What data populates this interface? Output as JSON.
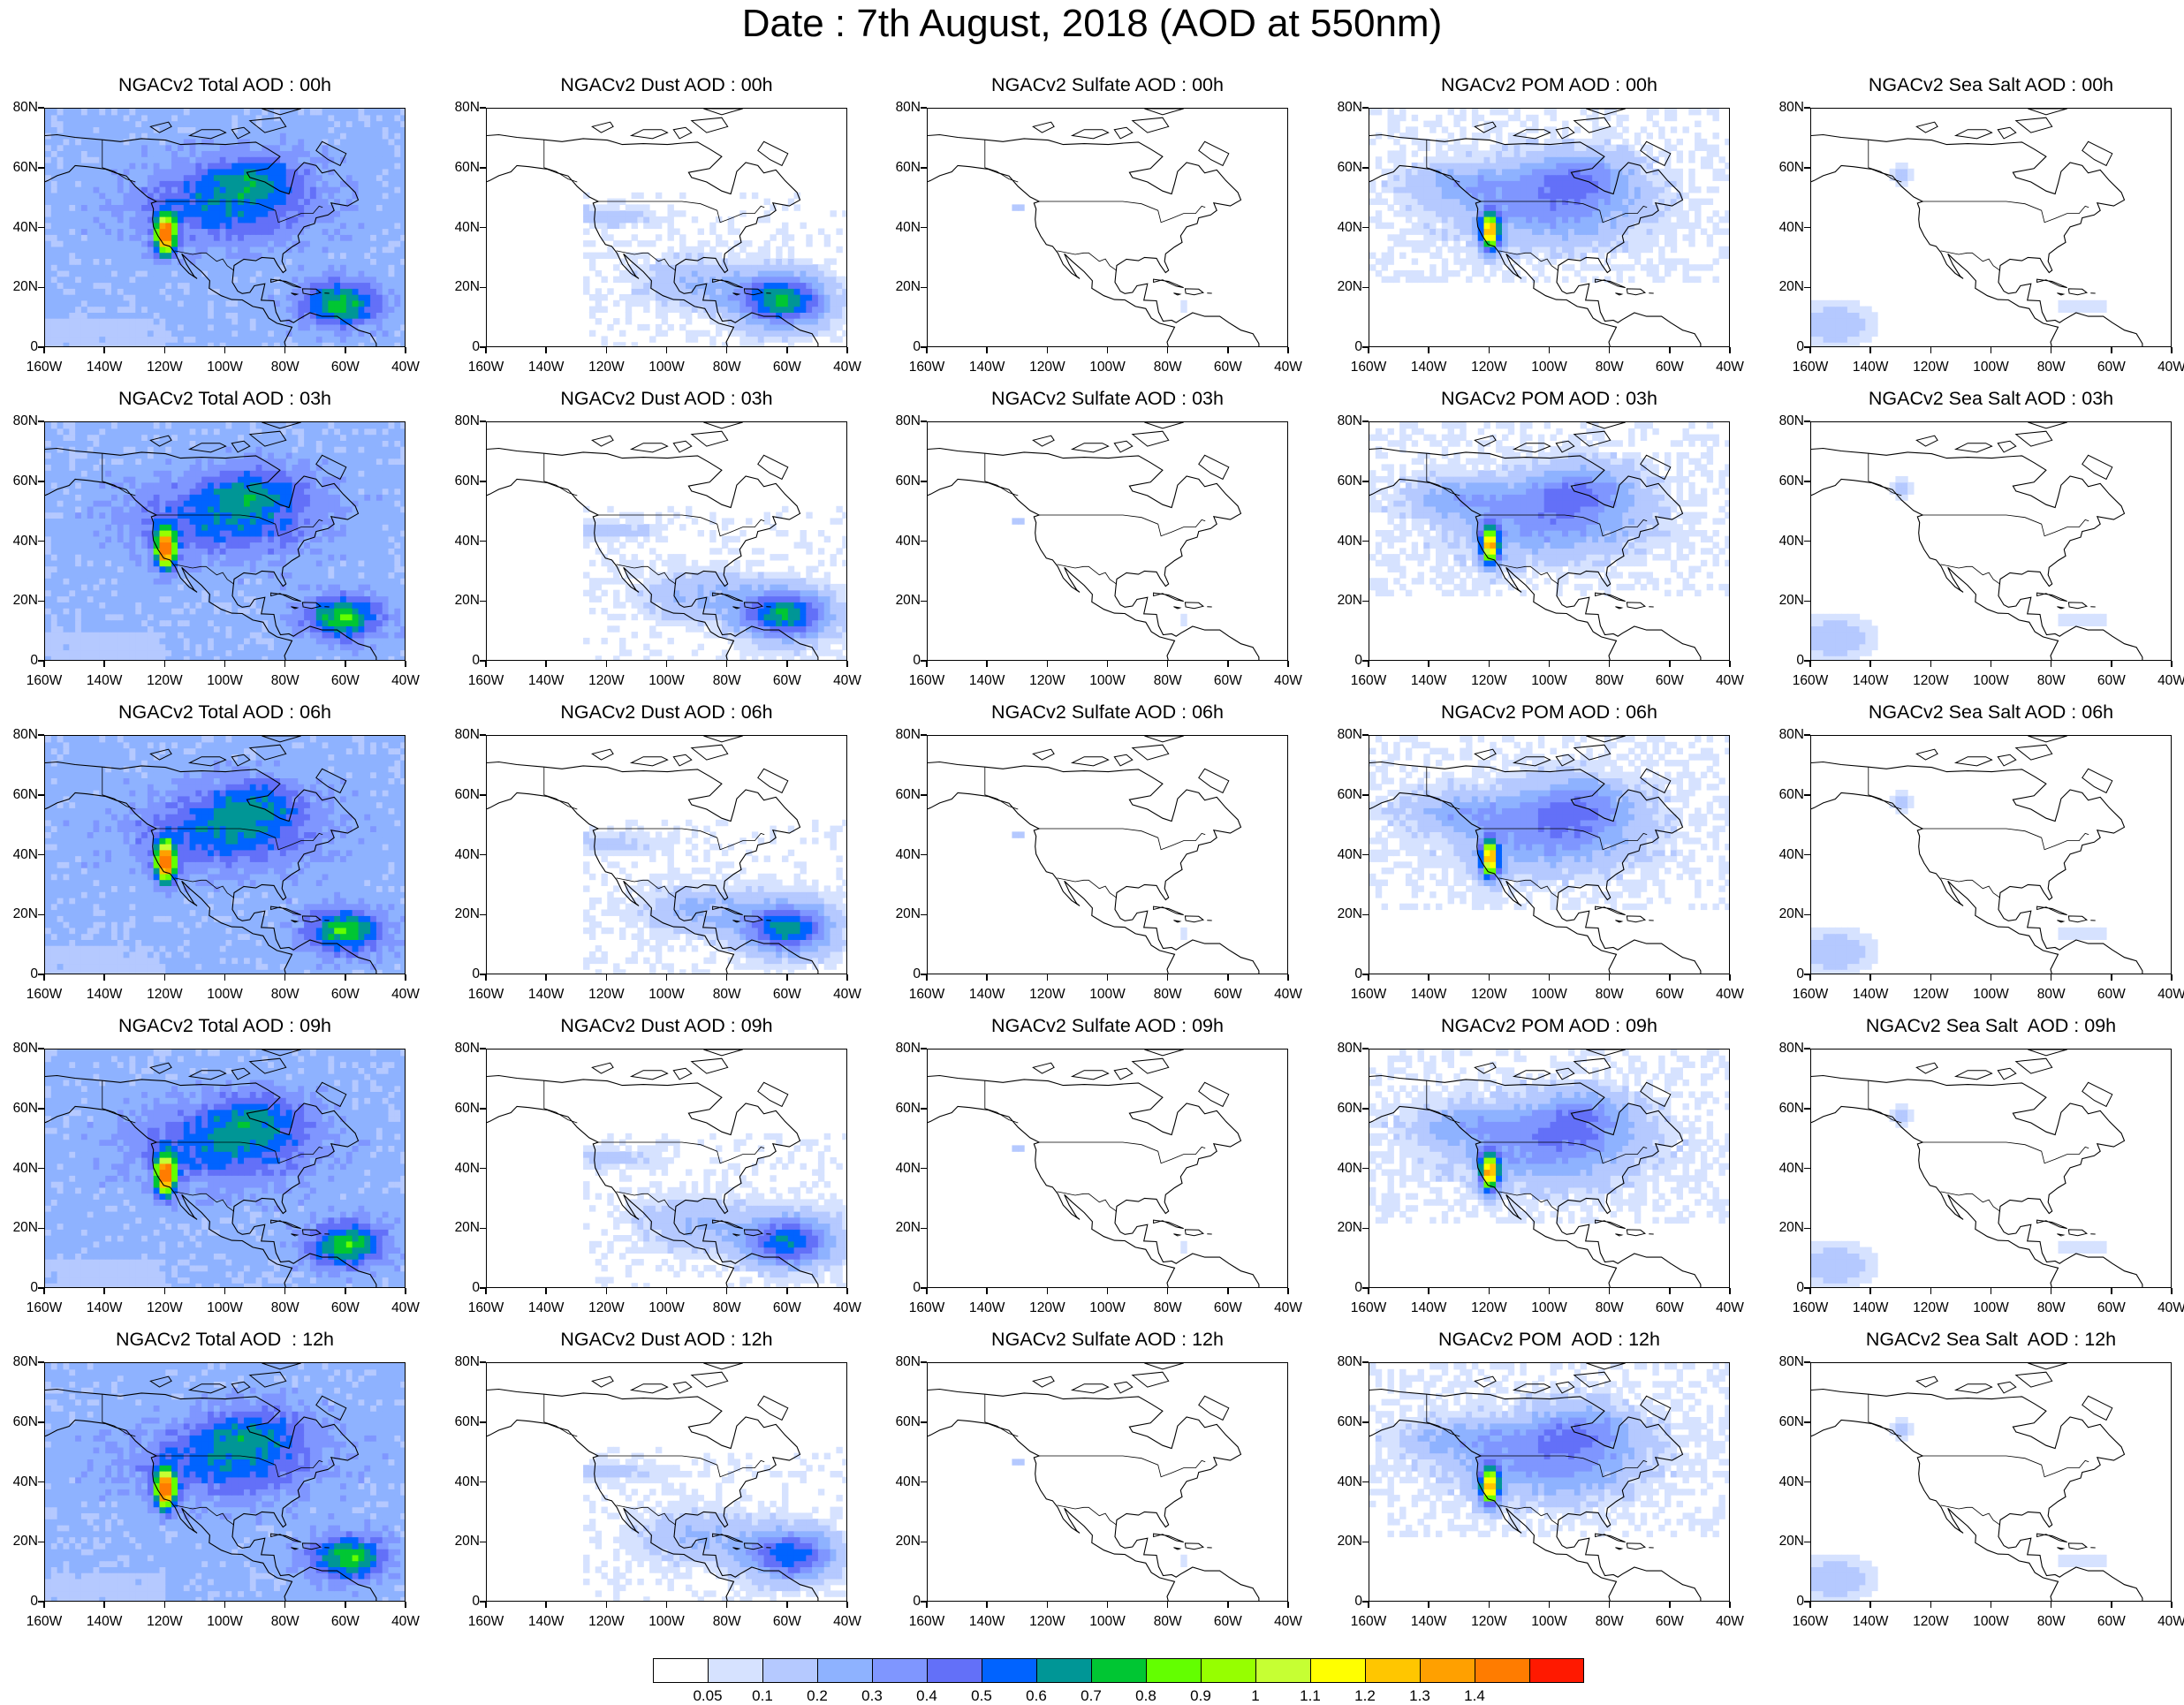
{
  "title": "Date : 7th August, 2018 (AOD at 550nm)",
  "lat_labels": [
    "80N",
    "60N",
    "40N",
    "20N",
    "0"
  ],
  "lon_labels": [
    "160W",
    "140W",
    "120W",
    "100W",
    "80W",
    "60W",
    "40W"
  ],
  "panels": [
    [
      {
        "title": "NGACv2 Total AOD : 00h",
        "species": "total",
        "hour": "00"
      },
      {
        "title": "NGACv2 Dust AOD : 00h",
        "species": "dust",
        "hour": "00"
      },
      {
        "title": "NGACv2 Sulfate AOD : 00h",
        "species": "sulfate",
        "hour": "00"
      },
      {
        "title": "NGACv2 POM AOD : 00h",
        "species": "pom",
        "hour": "00"
      },
      {
        "title": "NGACv2 Sea Salt AOD : 00h",
        "species": "seasalt",
        "hour": "00"
      }
    ],
    [
      {
        "title": "NGACv2 Total AOD : 03h",
        "species": "total",
        "hour": "03"
      },
      {
        "title": "NGACv2 Dust AOD : 03h",
        "species": "dust",
        "hour": "03"
      },
      {
        "title": "NGACv2 Sulfate AOD : 03h",
        "species": "sulfate",
        "hour": "03"
      },
      {
        "title": "NGACv2 POM AOD : 03h",
        "species": "pom",
        "hour": "03"
      },
      {
        "title": "NGACv2 Sea Salt AOD : 03h",
        "species": "seasalt",
        "hour": "03"
      }
    ],
    [
      {
        "title": "NGACv2 Total AOD : 06h",
        "species": "total",
        "hour": "06"
      },
      {
        "title": "NGACv2 Dust AOD : 06h",
        "species": "dust",
        "hour": "06"
      },
      {
        "title": "NGACv2 Sulfate AOD : 06h",
        "species": "sulfate",
        "hour": "06"
      },
      {
        "title": "NGACv2 POM AOD : 06h",
        "species": "pom",
        "hour": "06"
      },
      {
        "title": "NGACv2 Sea Salt AOD : 06h",
        "species": "seasalt",
        "hour": "06"
      }
    ],
    [
      {
        "title": "NGACv2 Total AOD : 09h",
        "species": "total",
        "hour": "09"
      },
      {
        "title": "NGACv2 Dust AOD : 09h",
        "species": "dust",
        "hour": "09"
      },
      {
        "title": "NGACv2 Sulfate AOD : 09h",
        "species": "sulfate",
        "hour": "09"
      },
      {
        "title": "NGACv2 POM AOD : 09h",
        "species": "pom",
        "hour": "09"
      },
      {
        "title": "NGACv2 Sea Salt  AOD : 09h",
        "species": "seasalt",
        "hour": "09"
      }
    ],
    [
      {
        "title": "NGACv2 Total AOD  : 12h",
        "species": "total",
        "hour": "12"
      },
      {
        "title": "NGACv2 Dust AOD : 12h",
        "species": "dust",
        "hour": "12"
      },
      {
        "title": "NGACv2 Sulfate AOD : 12h",
        "species": "sulfate",
        "hour": "12"
      },
      {
        "title": "NGACv2 POM  AOD : 12h",
        "species": "pom",
        "hour": "12"
      },
      {
        "title": "NGACv2 Sea Salt  AOD : 12h",
        "species": "seasalt",
        "hour": "12"
      }
    ]
  ],
  "colorbar": {
    "labels": [
      "0.05",
      "0.1",
      "0.2",
      "0.3",
      "0.4",
      "0.5",
      "0.6",
      "0.7",
      "0.8",
      "0.9",
      "1",
      "1.1",
      "1.2",
      "1.3",
      "1.4"
    ],
    "colors": [
      "#ffffff",
      "#d6e2ff",
      "#b5c9ff",
      "#8eb2ff",
      "#7f96ff",
      "#6370f8",
      "#0063ff",
      "#009696",
      "#00c633",
      "#63ff00",
      "#96ff00",
      "#c6ff33",
      "#ffff00",
      "#ffc600",
      "#ffa000",
      "#ff7c00",
      "#ff1900"
    ]
  }
}
